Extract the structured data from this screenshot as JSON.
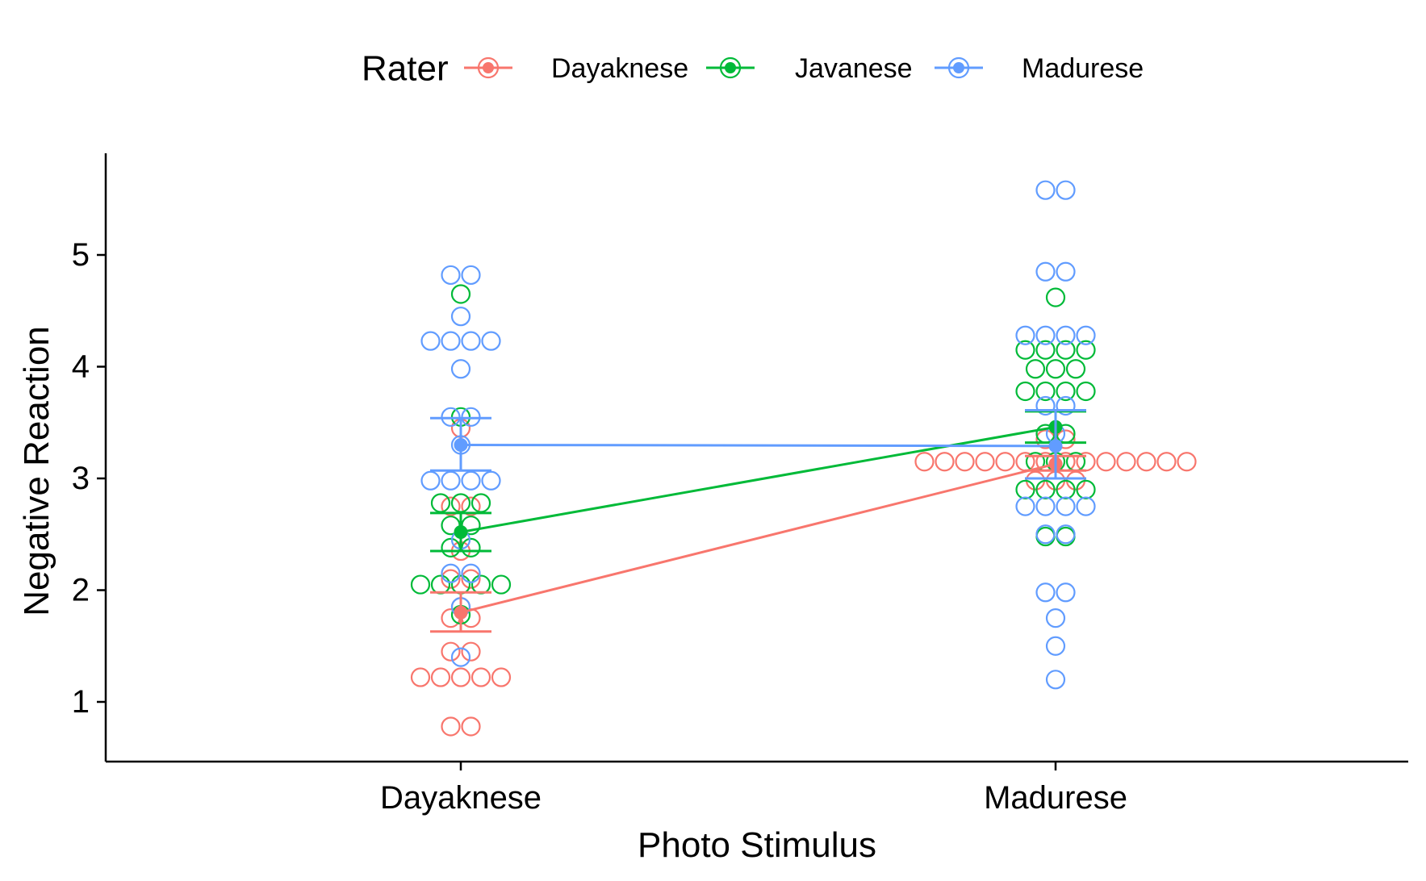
{
  "chart_data": {
    "type": "scatter",
    "xlabel": "Photo Stimulus",
    "ylabel": "Negative Reaction",
    "categories": [
      "Dayaknese",
      "Madurese"
    ],
    "yticks": [
      1,
      2,
      3,
      4,
      5
    ],
    "ylim": [
      0.45,
      5.9
    ],
    "legend": {
      "title": "Rater",
      "position": "top"
    },
    "series": [
      {
        "name": "Dayaknese",
        "color": "#F8766D",
        "means": [
          1.8,
          3.13
        ],
        "ci_lower": [
          1.63,
          3.07
        ],
        "ci_upper": [
          1.98,
          3.2
        ],
        "points": [
          [
            0.78,
            0.78,
            1.22,
            1.22,
            1.22,
            1.22,
            1.22,
            1.45,
            1.45,
            1.75,
            1.75,
            1.85,
            2.1,
            2.1,
            2.35,
            2.75,
            2.75,
            3.45
          ],
          [
            2.98,
            2.98,
            2.98,
            3.15,
            3.15,
            3.15,
            3.15,
            3.15,
            3.15,
            3.15,
            3.15,
            3.15,
            3.15,
            3.15,
            3.15,
            3.15,
            3.15,
            3.35,
            3.35
          ]
        ]
      },
      {
        "name": "Javanese",
        "color": "#00BA38",
        "means": [
          2.52,
          3.46
        ],
        "ci_lower": [
          2.35,
          3.32
        ],
        "ci_upper": [
          2.69,
          3.6
        ],
        "points": [
          [
            1.78,
            2.05,
            2.05,
            2.05,
            2.05,
            2.05,
            2.38,
            2.38,
            2.58,
            2.58,
            2.78,
            2.78,
            2.78,
            3.55,
            4.65
          ],
          [
            2.48,
            2.48,
            2.9,
            2.9,
            2.9,
            2.9,
            3.15,
            3.15,
            3.15,
            3.4,
            3.4,
            3.78,
            3.78,
            3.78,
            3.78,
            3.98,
            3.98,
            3.98,
            4.15,
            4.15,
            4.15,
            4.15,
            4.62
          ]
        ]
      },
      {
        "name": "Madurese",
        "color": "#619CFF",
        "means": [
          3.3,
          3.29
        ],
        "ci_lower": [
          3.07,
          3.0
        ],
        "ci_upper": [
          3.54,
          3.61
        ],
        "points": [
          [
            1.4,
            1.85,
            2.15,
            2.15,
            2.45,
            2.98,
            2.98,
            2.98,
            2.98,
            3.3,
            3.55,
            3.55,
            3.98,
            4.23,
            4.23,
            4.23,
            4.23,
            4.45,
            4.82,
            4.82
          ],
          [
            1.2,
            1.5,
            1.75,
            1.98,
            1.98,
            2.5,
            2.5,
            2.75,
            2.75,
            2.75,
            2.75,
            3.4,
            3.65,
            3.65,
            4.28,
            4.28,
            4.28,
            4.28,
            4.85,
            4.85,
            5.58,
            5.58
          ]
        ]
      }
    ]
  }
}
